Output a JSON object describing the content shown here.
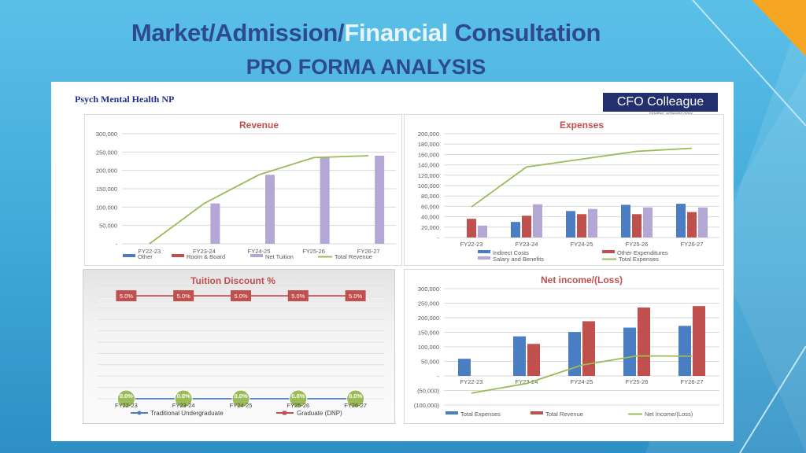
{
  "slide": {
    "title_part1": "Market/Admission/",
    "title_accent": "Financial",
    "title_part2": " Consultation",
    "subtitle": "PRO FORMA ANALYSIS"
  },
  "sheet": {
    "company": "Psych Mental Health NP",
    "logo_text": "CFO Colleague",
    "logo_tagline": "together, achieving more"
  },
  "colors": {
    "blue": "#4a7dc1",
    "red": "#c0504d",
    "purple": "#b4a7d6",
    "green": "#9bbb59",
    "title": "#c0504d",
    "tick": "#595959"
  },
  "chart_data": [
    {
      "id": "revenue",
      "type": "bar",
      "title": "Revenue",
      "categories": [
        "FY22-23",
        "FY23-24",
        "FY24-25",
        "FY25-26",
        "FY26-27"
      ],
      "ylim": [
        0,
        300000
      ],
      "yticks": [
        0,
        50000,
        100000,
        150000,
        200000,
        250000,
        300000
      ],
      "ytick_labels": [
        "-",
        "50,000",
        "100,000",
        "150,000",
        "200,000",
        "250,000",
        "300,000"
      ],
      "series": [
        {
          "name": "Other",
          "type": "bar",
          "color": "#4a7dc1",
          "values": [
            0,
            0,
            0,
            0,
            0
          ]
        },
        {
          "name": "Room & Board",
          "type": "bar",
          "color": "#c0504d",
          "values": [
            0,
            0,
            0,
            0,
            0
          ]
        },
        {
          "name": "Net Tuition",
          "type": "bar",
          "color": "#b4a7d6",
          "values": [
            0,
            110000,
            188000,
            235000,
            240000
          ]
        },
        {
          "name": "Total Revenue",
          "type": "line",
          "color": "#9bbb59",
          "values": [
            0,
            110000,
            188000,
            235000,
            240000
          ]
        }
      ],
      "legend": "bottom",
      "grid": true
    },
    {
      "id": "expenses",
      "type": "bar",
      "title": "Expenses",
      "categories": [
        "FY22-23",
        "FY23-24",
        "FY24-25",
        "FY25-26",
        "FY26-27"
      ],
      "ylim": [
        0,
        200000
      ],
      "yticks": [
        0,
        20000,
        40000,
        60000,
        80000,
        100000,
        120000,
        140000,
        160000,
        180000,
        200000
      ],
      "ytick_labels": [
        "-",
        "20,000",
        "40,000",
        "60,000",
        "80,000",
        "100,000",
        "120,000",
        "140,000",
        "160,000",
        "180,000",
        "200,000"
      ],
      "series": [
        {
          "name": "Indirect Costs",
          "type": "bar",
          "color": "#4a7dc1",
          "values": [
            0,
            30000,
            51000,
            63000,
            65000
          ]
        },
        {
          "name": "Other Expenditures",
          "type": "bar",
          "color": "#c0504d",
          "values": [
            36000,
            42000,
            45000,
            45000,
            49000
          ]
        },
        {
          "name": "Salary and Benefits",
          "type": "bar",
          "color": "#b4a7d6",
          "values": [
            23000,
            64000,
            55000,
            58000,
            58000
          ]
        },
        {
          "name": "Total Expenses",
          "type": "line",
          "color": "#9bbb59",
          "values": [
            59000,
            136000,
            151000,
            166000,
            172000
          ]
        }
      ],
      "legend": "bottom",
      "grid": true
    },
    {
      "id": "tuition-discount",
      "type": "line",
      "title": "Tuition Discount %",
      "categories": [
        "FY22-23",
        "FY23-24",
        "FY24-25",
        "FY25-26",
        "FY26-27"
      ],
      "ylim": [
        0,
        0.055
      ],
      "series": [
        {
          "name": "Traditional Undergraduate",
          "type": "line",
          "color": "#4a7dc1",
          "marker_color": "#9bbb59",
          "values": [
            0.0,
            0.0,
            0.0,
            0.0,
            0.0
          ],
          "labels": [
            "0.0%",
            "0.0%",
            "0.0%",
            "0.0%",
            "0.0%"
          ]
        },
        {
          "name": "Graduate (DNP)",
          "type": "line",
          "color": "#c0504d",
          "marker_color": "#c0504d",
          "values": [
            0.05,
            0.05,
            0.05,
            0.05,
            0.05
          ],
          "labels": [
            "5.0%",
            "5.0%",
            "5.0%",
            "5.0%",
            "5.0%"
          ]
        }
      ],
      "legend": "bottom",
      "grid": true
    },
    {
      "id": "net-income",
      "type": "bar",
      "title": "Net income/(Loss)",
      "categories": [
        "FY22-23",
        "FY23-24",
        "FY24-25",
        "FY25-26",
        "FY26-27"
      ],
      "ylim": [
        -100000,
        300000
      ],
      "yticks": [
        -100000,
        -50000,
        0,
        50000,
        100000,
        150000,
        200000,
        250000,
        300000
      ],
      "ytick_labels": [
        "(100,000)",
        "(50,000)",
        "-",
        "50,000",
        "100,000",
        "150,000",
        "200,000",
        "250,000",
        "300,000"
      ],
      "series": [
        {
          "name": "Total Expenses",
          "type": "bar",
          "color": "#4a7dc1",
          "values": [
            59000,
            136000,
            151000,
            166000,
            172000
          ]
        },
        {
          "name": "Total Revenue",
          "type": "bar",
          "color": "#c0504d",
          "values": [
            0,
            110000,
            188000,
            235000,
            240000
          ]
        },
        {
          "name": "Net Income/(Loss)",
          "type": "line",
          "color": "#9bbb59",
          "values": [
            -59000,
            -26000,
            37000,
            69000,
            68000
          ]
        }
      ],
      "legend": "bottom",
      "grid": true
    }
  ]
}
